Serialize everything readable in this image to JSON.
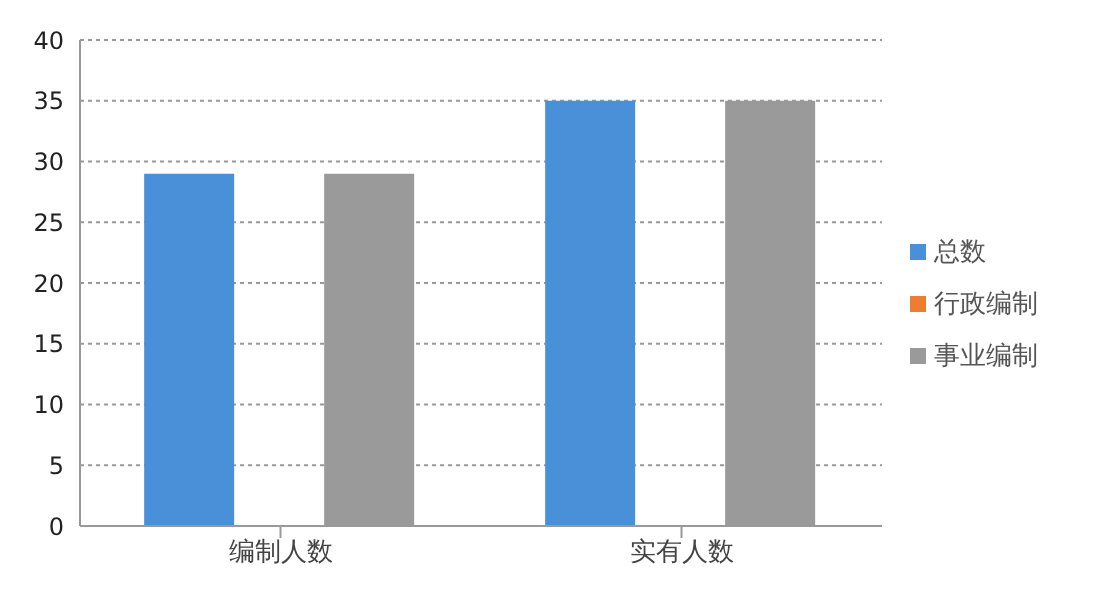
{
  "chart_data": {
    "type": "bar",
    "categories": [
      "编制人数",
      "实有人数"
    ],
    "series": [
      {
        "name": "总数",
        "color": "#4a90d9",
        "values": [
          29,
          35
        ]
      },
      {
        "name": "行政编制",
        "color": "#ed7d31",
        "values": [
          0,
          0
        ]
      },
      {
        "name": "事业编制",
        "color": "#9a9a9a",
        "values": [
          29,
          35
        ]
      }
    ],
    "ylim": [
      0,
      40
    ],
    "yticks": [
      0,
      5,
      10,
      15,
      20,
      25,
      30,
      35,
      40
    ],
    "grid": "y",
    "legend": "right"
  }
}
